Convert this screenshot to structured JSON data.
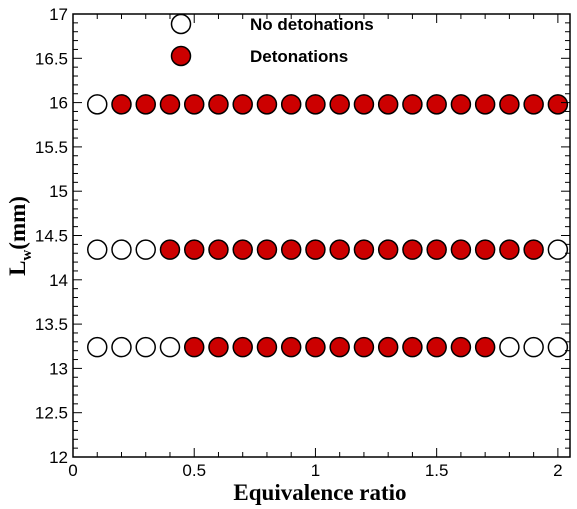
{
  "chart_data": {
    "type": "scatter",
    "xlabel": "Equivalence ratio",
    "ylabel": {
      "main": "L",
      "sub": "w",
      "rest": "(mm)"
    },
    "xlim": [
      0,
      2.05
    ],
    "ylim": [
      12,
      17
    ],
    "xticks": [
      0,
      0.5,
      1,
      1.5,
      2
    ],
    "xtick_labels": [
      "0",
      "0.5",
      "1",
      "1.5",
      "2"
    ],
    "yticks": [
      12,
      12.5,
      13,
      13.5,
      14,
      14.5,
      15,
      15.5,
      16,
      16.5,
      17
    ],
    "ytick_labels": [
      "12",
      "12.5",
      "13",
      "13.5",
      "14",
      "14.5",
      "15",
      "15.5",
      "16",
      "16.5",
      "17"
    ],
    "grid": false,
    "legend_position": "top-center",
    "series": [
      {
        "name": "No detonations",
        "style": "open-circle",
        "points": [
          [
            0.1,
            15.98
          ],
          [
            0.1,
            14.34
          ],
          [
            0.2,
            14.34
          ],
          [
            0.3,
            14.34
          ],
          [
            2.0,
            14.34
          ],
          [
            0.1,
            13.24
          ],
          [
            0.2,
            13.24
          ],
          [
            0.3,
            13.24
          ],
          [
            0.4,
            13.24
          ],
          [
            1.8,
            13.24
          ],
          [
            1.9,
            13.24
          ],
          [
            2.0,
            13.24
          ]
        ]
      },
      {
        "name": "Detonations",
        "style": "filled-circle",
        "color": "#cc0000",
        "points": [
          [
            0.2,
            15.98
          ],
          [
            0.3,
            15.98
          ],
          [
            0.4,
            15.98
          ],
          [
            0.5,
            15.98
          ],
          [
            0.6,
            15.98
          ],
          [
            0.7,
            15.98
          ],
          [
            0.8,
            15.98
          ],
          [
            0.9,
            15.98
          ],
          [
            1.0,
            15.98
          ],
          [
            1.1,
            15.98
          ],
          [
            1.2,
            15.98
          ],
          [
            1.3,
            15.98
          ],
          [
            1.4,
            15.98
          ],
          [
            1.5,
            15.98
          ],
          [
            1.6,
            15.98
          ],
          [
            1.7,
            15.98
          ],
          [
            1.8,
            15.98
          ],
          [
            1.9,
            15.98
          ],
          [
            2.0,
            15.98
          ],
          [
            0.4,
            14.34
          ],
          [
            0.5,
            14.34
          ],
          [
            0.6,
            14.34
          ],
          [
            0.7,
            14.34
          ],
          [
            0.8,
            14.34
          ],
          [
            0.9,
            14.34
          ],
          [
            1.0,
            14.34
          ],
          [
            1.1,
            14.34
          ],
          [
            1.2,
            14.34
          ],
          [
            1.3,
            14.34
          ],
          [
            1.4,
            14.34
          ],
          [
            1.5,
            14.34
          ],
          [
            1.6,
            14.34
          ],
          [
            1.7,
            14.34
          ],
          [
            1.8,
            14.34
          ],
          [
            1.9,
            14.34
          ],
          [
            0.5,
            13.24
          ],
          [
            0.6,
            13.24
          ],
          [
            0.7,
            13.24
          ],
          [
            0.8,
            13.24
          ],
          [
            0.9,
            13.24
          ],
          [
            1.0,
            13.24
          ],
          [
            1.1,
            13.24
          ],
          [
            1.2,
            13.24
          ],
          [
            1.3,
            13.24
          ],
          [
            1.4,
            13.24
          ],
          [
            1.5,
            13.24
          ],
          [
            1.6,
            13.24
          ],
          [
            1.7,
            13.24
          ]
        ]
      }
    ]
  }
}
